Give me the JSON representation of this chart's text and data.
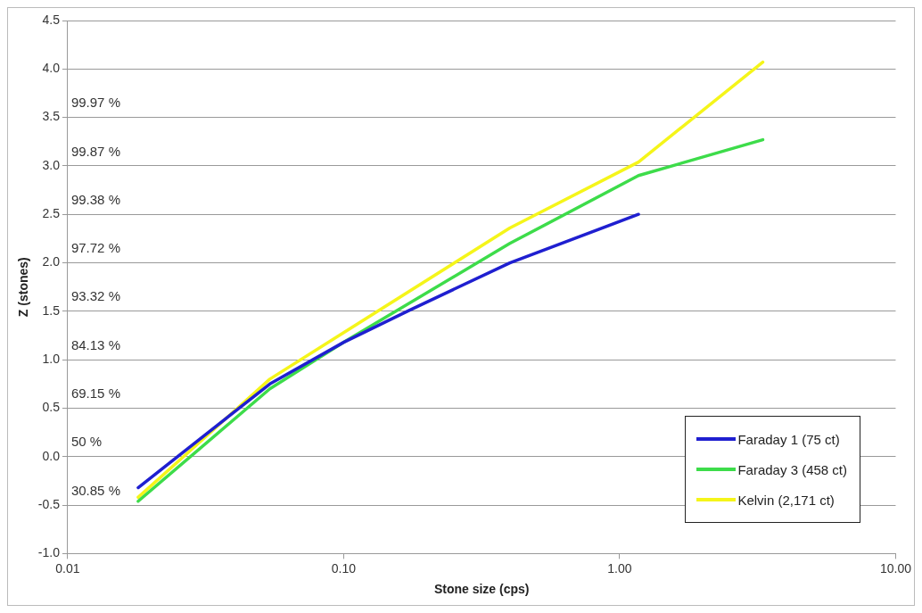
{
  "chart_data": {
    "type": "line",
    "xlabel": "Stone size (cps)",
    "ylabel": "Z (stones)",
    "log": "x",
    "xlim": [
      0.01,
      10
    ],
    "xticks": [
      {
        "value": 0.01,
        "label": "0.01"
      },
      {
        "value": 0.1,
        "label": "0.10"
      },
      {
        "value": 1,
        "label": "1.00"
      },
      {
        "value": 10,
        "label": "10.00"
      }
    ],
    "ylim": [
      -1,
      4.5
    ],
    "yticks": [
      {
        "value": -1,
        "label": "-1.0"
      },
      {
        "value": -0.5,
        "label": "-0.5"
      },
      {
        "value": 0,
        "label": "0.0"
      },
      {
        "value": 0.5,
        "label": "0.5"
      },
      {
        "value": 1,
        "label": "1.0"
      },
      {
        "value": 1.5,
        "label": "1.5"
      },
      {
        "value": 2,
        "label": "2.0"
      },
      {
        "value": 2.5,
        "label": "2.5"
      },
      {
        "value": 3,
        "label": "3.0"
      },
      {
        "value": 3.5,
        "label": "3.5"
      },
      {
        "value": 4,
        "label": "4.0"
      },
      {
        "value": 4.5,
        "label": "4.5"
      }
    ],
    "grid": "y",
    "legend": "bottom right",
    "marker": "none",
    "line_style": "solid",
    "series": [
      {
        "name": "Faraday 1 (75 ct)",
        "color": "#1f1fd0",
        "x": [
          0.018,
          0.054,
          0.1,
          0.17,
          0.4,
          1.17
        ],
        "values": [
          -0.32,
          0.75,
          1.18,
          1.5,
          2.0,
          2.5
        ]
      },
      {
        "name": "Faraday 3 (458 ct)",
        "color": "#3ddc4a",
        "x": [
          0.018,
          0.054,
          0.1,
          0.4,
          1.17,
          3.3
        ],
        "values": [
          -0.46,
          0.7,
          1.18,
          2.2,
          2.9,
          3.27
        ]
      },
      {
        "name": "Kelvin (2,171 ct)",
        "color": "#f5f51a",
        "x": [
          0.018,
          0.054,
          0.1,
          0.4,
          1.17,
          3.3
        ],
        "values": [
          -0.42,
          0.8,
          1.28,
          2.36,
          3.04,
          4.07
        ]
      }
    ],
    "annotations": [
      "30.85 %",
      "50 %",
      "69.15 %",
      "84.13 %",
      "93.32 %",
      "97.72 %",
      "99.38 %",
      "99.87 %",
      "99.97 %"
    ]
  }
}
